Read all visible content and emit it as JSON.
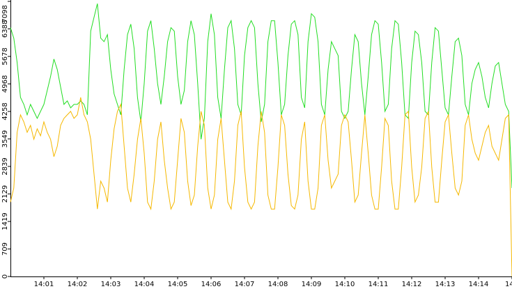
{
  "chart_data": {
    "type": "line",
    "x": [
      0,
      0.1,
      0.2,
      0.3,
      0.4,
      0.5,
      0.6,
      0.7,
      0.8,
      0.9,
      1,
      1.1,
      1.2,
      1.3,
      1.4,
      1.5,
      1.6,
      1.7,
      1.8,
      1.9,
      2,
      2.1,
      2.2,
      2.3,
      2.4,
      2.5,
      2.6,
      2.7,
      2.8,
      2.9,
      3,
      3.1,
      3.2,
      3.3,
      3.4,
      3.5,
      3.6,
      3.7,
      3.8,
      3.9,
      4,
      4.1,
      4.2,
      4.3,
      4.4,
      4.5,
      4.6,
      4.7,
      4.8,
      4.9,
      5,
      5.1,
      5.2,
      5.3,
      5.4,
      5.5,
      5.6,
      5.7,
      5.8,
      5.9,
      6,
      6.1,
      6.2,
      6.3,
      6.4,
      6.5,
      6.6,
      6.7,
      6.8,
      6.9,
      7,
      7.1,
      7.2,
      7.3,
      7.4,
      7.5,
      7.6,
      7.7,
      7.8,
      7.9,
      8,
      8.1,
      8.2,
      8.3,
      8.4,
      8.5,
      8.6,
      8.7,
      8.8,
      8.9,
      9,
      9.1,
      9.2,
      9.3,
      9.4,
      9.5,
      9.6,
      9.7,
      9.8,
      9.9,
      10,
      10.1,
      10.2,
      10.3,
      10.4,
      10.5,
      10.6,
      10.7,
      10.8,
      10.9,
      11,
      11.1,
      11.2,
      11.3,
      11.4,
      11.5,
      11.6,
      11.7,
      11.8,
      11.9,
      12,
      12.1,
      12.2,
      12.3,
      12.4,
      12.5,
      12.6,
      12.7,
      12.8,
      12.9,
      13,
      13.1,
      13.2,
      13.3,
      13.4,
      13.5,
      13.6,
      13.7,
      13.8,
      13.9,
      14,
      14.1,
      14.2,
      14.3,
      14.4,
      14.5,
      14.6,
      14.7,
      14.8,
      14.9,
      15
    ],
    "series": [
      {
        "color": "#22dd22",
        "values": [
          6420,
          6150,
          5520,
          4620,
          4440,
          4170,
          4440,
          4260,
          4080,
          4260,
          4440,
          4800,
          5160,
          5610,
          5340,
          4890,
          4440,
          4530,
          4350,
          4440,
          4440,
          4530,
          4440,
          4170,
          6330,
          6690,
          7040,
          6150,
          6060,
          6240,
          5340,
          4710,
          4440,
          4170,
          5340,
          6240,
          6510,
          5880,
          4620,
          3990,
          4980,
          6330,
          6600,
          5880,
          4980,
          4440,
          5160,
          6060,
          6420,
          6330,
          5160,
          4440,
          4800,
          6060,
          6600,
          6240,
          4980,
          3540,
          4080,
          6060,
          6780,
          6240,
          4620,
          4080,
          5340,
          6420,
          6600,
          5880,
          4440,
          4170,
          5700,
          6420,
          6600,
          6420,
          4980,
          3990,
          4440,
          6060,
          6600,
          6600,
          5520,
          4170,
          4440,
          5700,
          6510,
          6600,
          6240,
          4620,
          4350,
          6060,
          6780,
          6690,
          6060,
          4440,
          4170,
          5340,
          6060,
          5880,
          5700,
          4260,
          4080,
          4260,
          5340,
          6240,
          6060,
          4980,
          4170,
          5160,
          6240,
          6600,
          6510,
          5520,
          4260,
          4440,
          5880,
          6600,
          6510,
          5520,
          4170,
          4080,
          5520,
          6330,
          6240,
          5520,
          4260,
          4170,
          5520,
          6420,
          6330,
          5340,
          4350,
          4170,
          5160,
          6060,
          6150,
          5700,
          4440,
          4170,
          4980,
          5340,
          5520,
          5160,
          4620,
          4350,
          4980,
          5430,
          5520,
          4980,
          4440,
          4260,
          2280
        ]
      },
      {
        "color": "#f5b800",
        "values": [
          1920,
          2280,
          3720,
          4170,
          3990,
          3720,
          3900,
          3540,
          3810,
          3630,
          3990,
          3720,
          3540,
          3090,
          3360,
          3900,
          4080,
          4170,
          4260,
          4080,
          4170,
          4620,
          4170,
          3990,
          3540,
          2640,
          1740,
          2460,
          2280,
          1920,
          3000,
          3810,
          4260,
          4440,
          3360,
          2280,
          1920,
          2640,
          3540,
          4080,
          3180,
          1920,
          1740,
          2460,
          3540,
          3990,
          3000,
          2280,
          1740,
          1920,
          3000,
          4080,
          3720,
          2460,
          1830,
          2100,
          3360,
          4260,
          3900,
          2280,
          1740,
          2100,
          3540,
          4080,
          3000,
          1920,
          1740,
          2460,
          3900,
          4260,
          2820,
          1920,
          1740,
          1920,
          3360,
          4260,
          3720,
          2100,
          1740,
          1740,
          2820,
          4170,
          3900,
          2640,
          1830,
          1740,
          2100,
          3540,
          3990,
          2460,
          1740,
          1740,
          2280,
          3900,
          4170,
          3000,
          2280,
          2460,
          2640,
          3900,
          4170,
          3990,
          3000,
          1920,
          2100,
          3180,
          4170,
          3180,
          2100,
          1740,
          1740,
          2820,
          4080,
          3900,
          2460,
          1740,
          1740,
          2820,
          4170,
          4260,
          2820,
          1920,
          2100,
          2820,
          4080,
          4260,
          2820,
          1920,
          1920,
          3000,
          3990,
          4170,
          3180,
          2280,
          2100,
          2460,
          3900,
          4170,
          3540,
          3180,
          3000,
          3360,
          3720,
          3900,
          3360,
          3180,
          3000,
          3540,
          4080,
          4170,
          0
        ]
      }
    ],
    "xlim": [
      0,
      15
    ],
    "xticks": [
      {
        "value": 1,
        "label": "14:01"
      },
      {
        "value": 2,
        "label": "14:02"
      },
      {
        "value": 3,
        "label": "14:03"
      },
      {
        "value": 4,
        "label": "14:04"
      },
      {
        "value": 5,
        "label": "14:05"
      },
      {
        "value": 6,
        "label": "14:06"
      },
      {
        "value": 7,
        "label": "14:07"
      },
      {
        "value": 8,
        "label": "14:08"
      },
      {
        "value": 9,
        "label": "14:09"
      },
      {
        "value": 10,
        "label": "14:10"
      },
      {
        "value": 11,
        "label": "14:11"
      },
      {
        "value": 12,
        "label": "14:12"
      },
      {
        "value": 13,
        "label": "14:13"
      },
      {
        "value": 14,
        "label": "14:14"
      },
      {
        "value": 15,
        "label": "14"
      }
    ],
    "ylim": [
      0,
      7098
    ],
    "yticks": [
      0,
      709,
      1419,
      2129,
      2839,
      3549,
      4258,
      4968,
      5678,
      6388,
      7098
    ]
  }
}
